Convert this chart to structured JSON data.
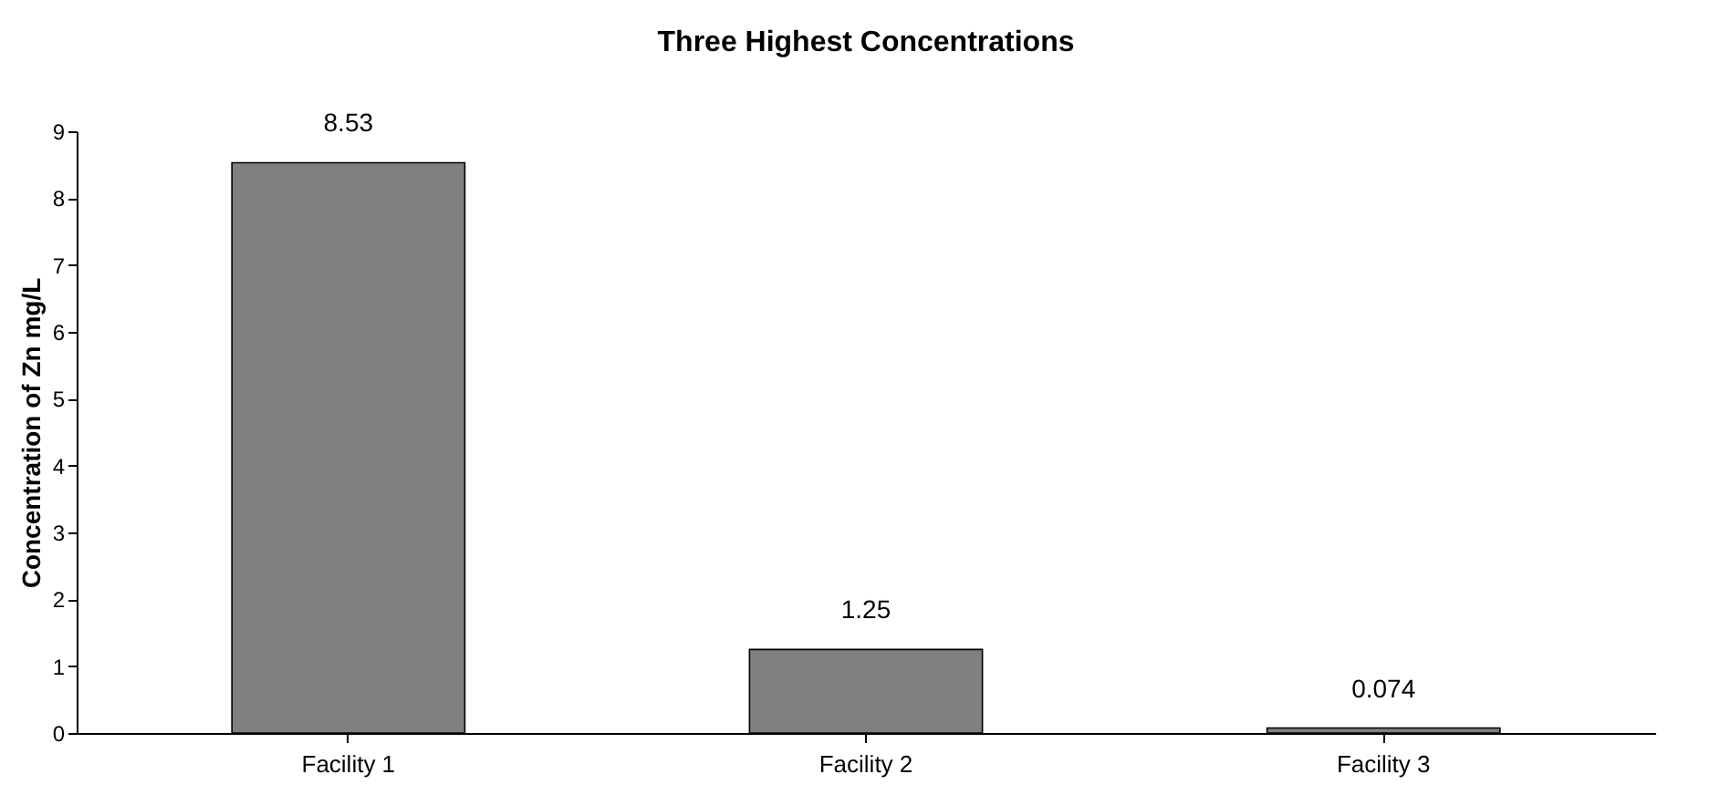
{
  "chart_data": {
    "type": "bar",
    "title": "Three Highest Concentrations",
    "ylabel": "Concentration of Zn mg/L",
    "categories": [
      "Facility 1",
      "Facility 2",
      "Facility 3"
    ],
    "values": [
      8.53,
      1.25,
      0.074
    ],
    "color": "#808080",
    "ylim": [
      0,
      9
    ],
    "yticks": [
      0,
      1,
      2,
      3,
      4,
      5,
      6,
      7,
      8,
      9
    ],
    "data_labels": true
  }
}
